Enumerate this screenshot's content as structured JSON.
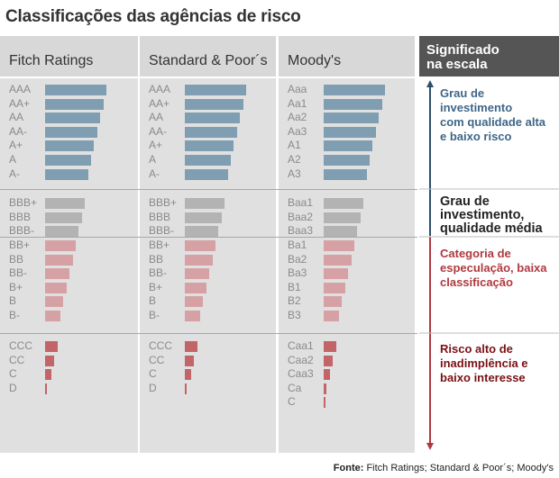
{
  "title": "Classificações das agências de risco",
  "colors": {
    "investment_high": "#7f9eb2",
    "investment_medium": "#b3b3b3",
    "speculative": "#d6a1a5",
    "high_risk": "#c26468",
    "arrow_up": "#2c4f6b",
    "arrow_down": "#b0393f",
    "text_blue": "#3e6688",
    "text_dark": "#222222",
    "text_red": "#b0393f",
    "text_darkred": "#7a1014"
  },
  "meaning_header": "Significado na escala",
  "meaning_header_lines": [
    "Significado",
    "na escala"
  ],
  "meanings": [
    {
      "lines": [
        "Grau de",
        "investimento",
        "com qualidade alta",
        "e baixo risco"
      ],
      "tone": "blue"
    },
    {
      "lines": [
        "Grau de",
        "investimento,",
        "qualidade média"
      ],
      "tone": "dark"
    },
    {
      "lines": [
        "Categoria de",
        "especulação, baixa",
        "classificação"
      ],
      "tone": "red"
    },
    {
      "lines": [
        "Risco alto de",
        "inadimplência e",
        "baixo interesse"
      ],
      "tone": "darkred"
    }
  ],
  "source_label": "Fonte:",
  "source_text": " Fitch Ratings; Standard & Poor´s; Moody's",
  "chart_data": {
    "type": "bar",
    "title": "Classificações das agências de risco",
    "orientation": "horizontal",
    "value_note": "Bar lengths are relative (decreasing with rating); estimated relative length where AAA = 100",
    "agencies": [
      {
        "name": "Fitch Ratings",
        "groups": [
          {
            "category": "investment_high",
            "labels": [
              "AAA",
              "AA+",
              "AA",
              "AA-",
              "A+",
              "A",
              "A-"
            ],
            "values": [
              100,
              95,
              90,
              85,
              80,
              75,
              70
            ]
          },
          {
            "category": "investment_medium",
            "labels": [
              "BBB+",
              "BBB",
              "BBB-"
            ],
            "values": [
              65,
              60,
              55
            ]
          },
          {
            "category": "speculative",
            "labels": [
              "BB+",
              "BB",
              "BB-",
              "B+",
              "B",
              "B-"
            ],
            "values": [
              50,
              45,
              40,
              35,
              30,
              25
            ]
          },
          {
            "category": "high_risk",
            "labels": [
              "CCC",
              "CC",
              "C",
              "D"
            ],
            "values": [
              20,
              15,
              10,
              3
            ]
          }
        ]
      },
      {
        "name": "Standard & Poor´s",
        "groups": [
          {
            "category": "investment_high",
            "labels": [
              "AAA",
              "AA+",
              "AA",
              "AA-",
              "A+",
              "A",
              "A-"
            ],
            "values": [
              100,
              95,
              90,
              85,
              80,
              75,
              70
            ]
          },
          {
            "category": "investment_medium",
            "labels": [
              "BBB+",
              "BBB",
              "BBB-"
            ],
            "values": [
              65,
              60,
              55
            ]
          },
          {
            "category": "speculative",
            "labels": [
              "BB+",
              "BB",
              "BB-",
              "B+",
              "B",
              "B-"
            ],
            "values": [
              50,
              45,
              40,
              35,
              30,
              25
            ]
          },
          {
            "category": "high_risk",
            "labels": [
              "CCC",
              "CC",
              "C",
              "D"
            ],
            "values": [
              20,
              15,
              10,
              3
            ]
          }
        ]
      },
      {
        "name": "Moody's",
        "groups": [
          {
            "category": "investment_high",
            "labels": [
              "Aaa",
              "Aa1",
              "Aa2",
              "Aa3",
              "A1",
              "A2",
              "A3"
            ],
            "values": [
              100,
              95,
              90,
              85,
              80,
              75,
              70
            ]
          },
          {
            "category": "investment_medium",
            "labels": [
              "Baa1",
              "Baa2",
              "Baa3"
            ],
            "values": [
              65,
              60,
              55
            ]
          },
          {
            "category": "speculative",
            "labels": [
              "Ba1",
              "Ba2",
              "Ba3",
              "B1",
              "B2",
              "B3"
            ],
            "values": [
              50,
              45,
              40,
              35,
              30,
              25
            ]
          },
          {
            "category": "high_risk",
            "labels": [
              "Caa1",
              "Caa2",
              "Caa3",
              "Ca",
              "C"
            ],
            "values": [
              20,
              15,
              10,
              5,
              2
            ]
          }
        ]
      }
    ]
  }
}
